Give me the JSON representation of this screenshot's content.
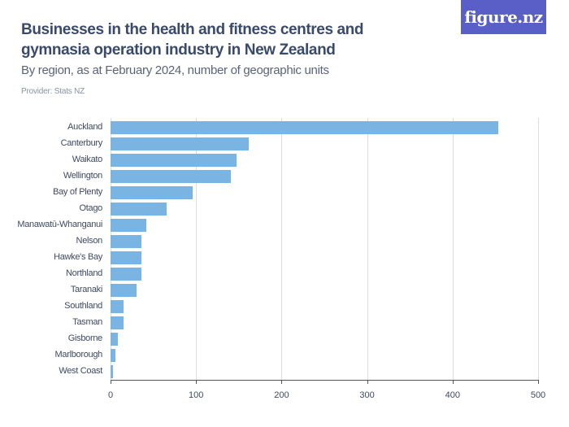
{
  "header": {
    "title": "Businesses in the health and fitness centres and gymnasia operation industry in New Zealand",
    "subtitle": "By region, as at February 2024, number of geographic units",
    "provider": "Provider: Stats NZ",
    "logo": "figure.nz"
  },
  "colors": {
    "bar": "#7ab4e3",
    "logo_bg": "#5a5fc8",
    "title": "#3a4a6a"
  },
  "chart_data": {
    "type": "bar",
    "orientation": "horizontal",
    "title": "Businesses in the health and fitness centres and gymnasia operation industry in New Zealand",
    "subtitle": "By region, as at February 2024, number of geographic units",
    "xlabel": "",
    "ylabel": "",
    "xlim": [
      0,
      500
    ],
    "xticks": [
      0,
      100,
      200,
      300,
      400,
      500
    ],
    "grid": true,
    "categories": [
      "Auckland",
      "Canterbury",
      "Waikato",
      "Wellington",
      "Bay of Plenty",
      "Otago",
      "Manawatū-Whanganui",
      "Nelson",
      "Hawke's Bay",
      "Northland",
      "Taranaki",
      "Southland",
      "Tasman",
      "Gisborne",
      "Marlborough",
      "West Coast"
    ],
    "values": [
      453,
      162,
      147,
      141,
      96,
      66,
      42,
      36,
      36,
      36,
      30,
      15,
      15,
      9,
      6,
      3
    ]
  }
}
